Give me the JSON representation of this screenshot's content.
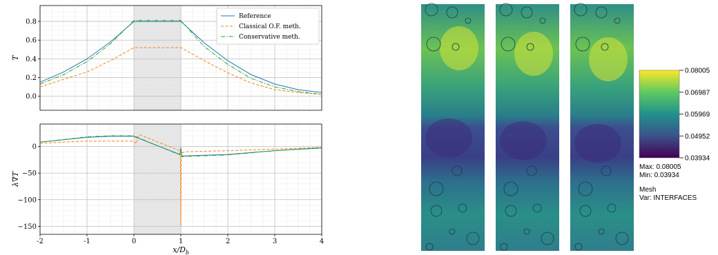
{
  "chart_data": [
    {
      "type": "line",
      "ylabel": "T",
      "xlim": [
        -2,
        4
      ],
      "ylim": [
        -0.15,
        0.97
      ],
      "yticks": [
        "0.0",
        "0.2",
        "0.4",
        "0.6",
        "0.8"
      ],
      "ytick_values": [
        0.0,
        0.2,
        0.4,
        0.6,
        0.8
      ],
      "shaded_region": [
        0,
        1
      ],
      "grid": true,
      "legend_position": "top-right",
      "series": [
        {
          "name": "Reference",
          "color": "#1f77b4",
          "style": "solid",
          "x": [
            -2,
            -1.5,
            -1,
            -0.5,
            0,
            1,
            1.5,
            2,
            2.5,
            3,
            3.5,
            4
          ],
          "y": [
            0.15,
            0.26,
            0.4,
            0.58,
            0.8,
            0.8,
            0.57,
            0.38,
            0.23,
            0.13,
            0.07,
            0.04
          ]
        },
        {
          "name": "Classical O.F. meth.",
          "color": "#ff7f0e",
          "style": "dashed",
          "x": [
            -2,
            -1.5,
            -1,
            -0.5,
            0,
            1,
            1.5,
            2,
            2.5,
            3,
            3.5,
            4
          ],
          "y": [
            0.1,
            0.18,
            0.26,
            0.38,
            0.52,
            0.52,
            0.38,
            0.25,
            0.14,
            0.07,
            0.04,
            0.02
          ]
        },
        {
          "name": "Conservative meth.",
          "color": "#2ca02c",
          "style": "dashdot",
          "x": [
            -2,
            -1.5,
            -1,
            -0.5,
            0,
            1,
            1.5,
            2,
            2.5,
            3,
            3.5,
            4
          ],
          "y": [
            0.13,
            0.23,
            0.37,
            0.56,
            0.81,
            0.81,
            0.53,
            0.34,
            0.19,
            0.1,
            0.05,
            0.02
          ]
        }
      ]
    },
    {
      "type": "line",
      "xlabel": "x/D_b",
      "ylabel": "λ∇T",
      "xlim": [
        -2,
        4
      ],
      "ylim": [
        -165,
        42
      ],
      "xticks": [
        "-2",
        "-1",
        "0",
        "1",
        "2",
        "3",
        "4"
      ],
      "xtick_values": [
        -2,
        -1,
        0,
        1,
        2,
        3,
        4
      ],
      "yticks": [
        "0",
        "−50",
        "−100",
        "−150"
      ],
      "ytick_values": [
        0,
        -50,
        -100,
        -150
      ],
      "shaded_region": [
        0,
        1
      ],
      "grid": true,
      "series": [
        {
          "name": "Reference",
          "color": "#1f77b4",
          "style": "solid",
          "x": [
            -2,
            -1,
            -0.5,
            0,
            0.02,
            0.98,
            1,
            1.02,
            2,
            3,
            4
          ],
          "y": [
            8,
            17,
            19,
            19,
            18,
            -15,
            -3,
            -18,
            -15,
            -8,
            -3
          ]
        },
        {
          "name": "Classical O.F. meth.",
          "color": "#ff7f0e",
          "style": "dashed",
          "x": [
            -2,
            -1,
            0,
            0.05,
            0.1,
            0.12,
            0.98,
            0.99,
            1.0,
            1.01,
            1.02,
            1.1,
            2,
            3,
            4
          ],
          "y": [
            6,
            10,
            10,
            5,
            22,
            22,
            -8,
            -18,
            -150,
            -15,
            -12,
            -10,
            -8,
            -5,
            -2
          ]
        },
        {
          "name": "Conservative meth.",
          "color": "#2ca02c",
          "style": "dashdot",
          "x": [
            -2,
            -1,
            -0.5,
            0,
            0.02,
            0.98,
            1,
            1.02,
            2,
            3,
            4
          ],
          "y": [
            8,
            18,
            20,
            20,
            19,
            -16,
            -2,
            -19,
            -16,
            -8,
            -2
          ]
        }
      ]
    }
  ],
  "colorbar": {
    "ticks": [
      "0.08005",
      "0.06987",
      "0.05969",
      "0.04952",
      "0.03934"
    ],
    "max_label": "Max:  0.08005",
    "min_label": "Min:  0.03934",
    "mesh_label": "Mesh",
    "var_label": "Var: INTERFACES",
    "colors": [
      "#440154",
      "#3b528b",
      "#21918c",
      "#5ec962",
      "#fde725"
    ]
  }
}
